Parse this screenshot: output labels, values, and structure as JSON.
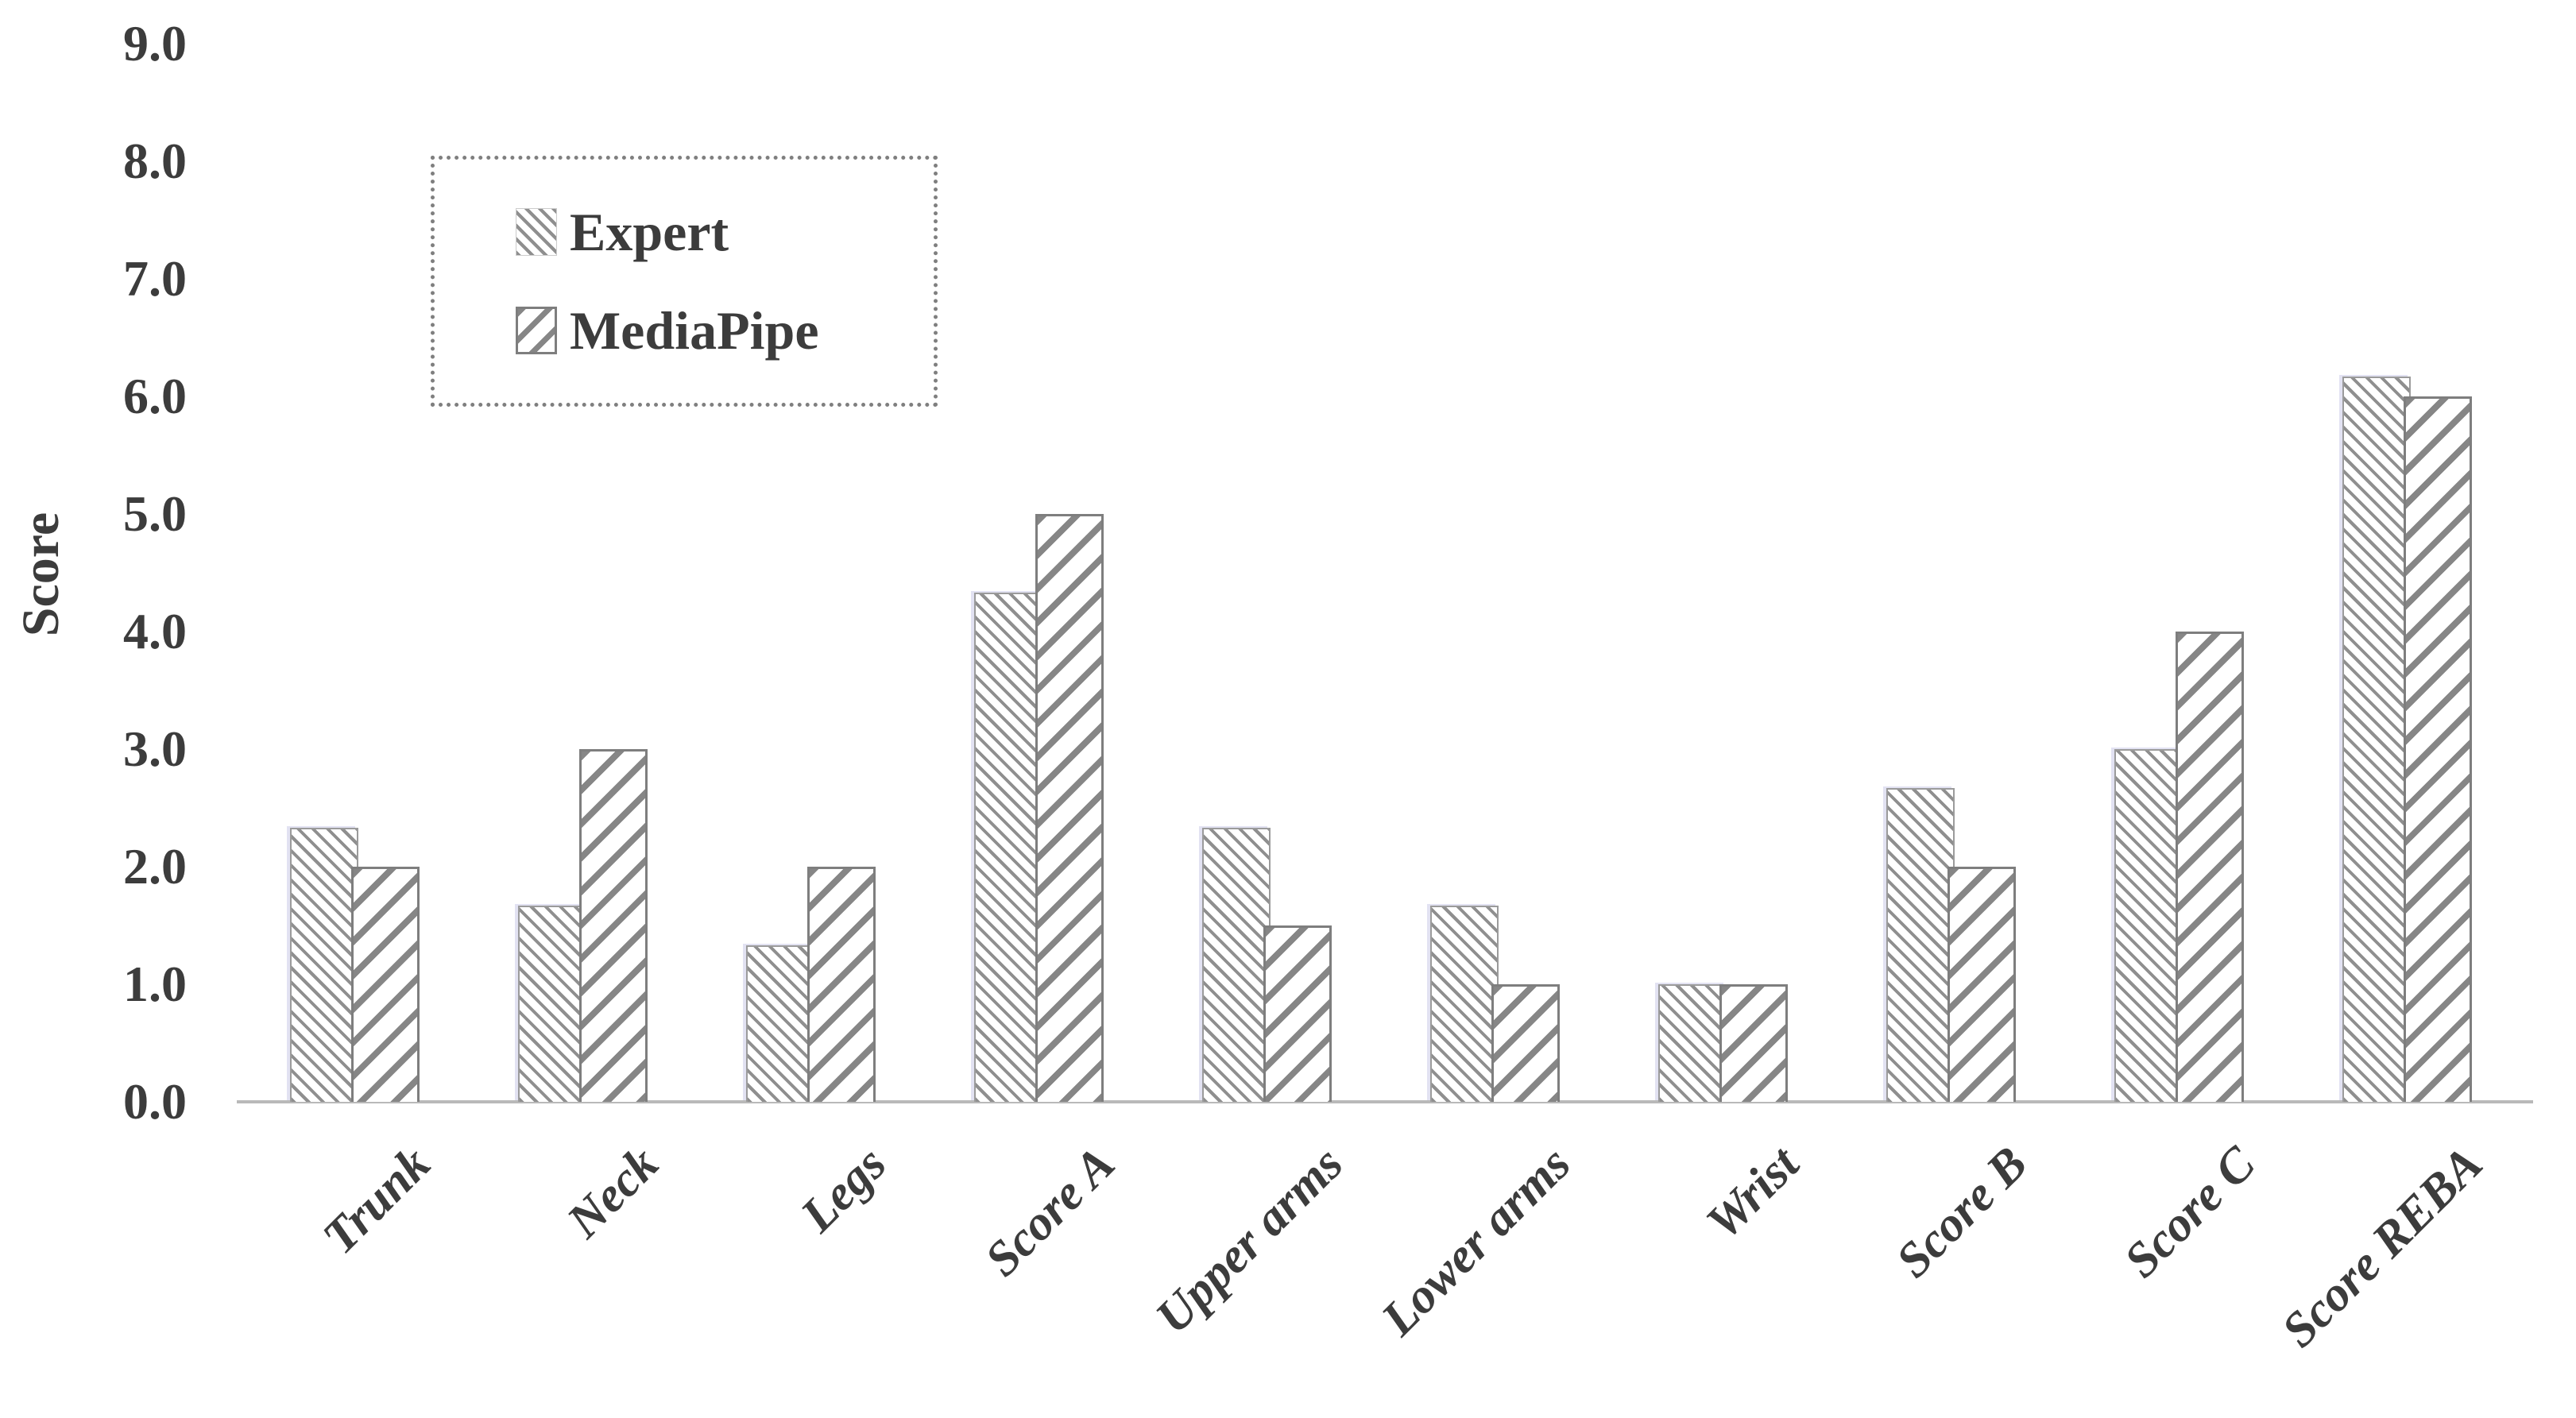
{
  "chart_data": {
    "type": "bar",
    "title": "",
    "xlabel": "",
    "ylabel": "Score",
    "ylim": [
      0,
      9
    ],
    "yticks": [
      "0.0",
      "1.0",
      "2.0",
      "3.0",
      "4.0",
      "5.0",
      "6.0",
      "7.0",
      "8.0",
      "9.0"
    ],
    "grid": false,
    "legend_position": "top-left-inside",
    "categories": [
      "Trunk",
      "Neck",
      "Legs",
      "Score A",
      "Upper arms",
      "Lower arms",
      "Wrist",
      "Score B",
      "Score C",
      "Score REBA"
    ],
    "series": [
      {
        "name": "Expert",
        "hatch": "backslash-dense",
        "values": [
          2.33,
          1.67,
          1.33,
          4.33,
          2.33,
          1.67,
          1.0,
          2.67,
          3.0,
          6.17
        ]
      },
      {
        "name": "MediaPipe",
        "hatch": "forward-slash",
        "values": [
          2.0,
          3.0,
          2.0,
          5.0,
          1.5,
          1.0,
          1.0,
          2.0,
          4.0,
          6.0
        ]
      }
    ]
  },
  "colors": {
    "text": "#3c3c3c",
    "hatch_gray": "#8a8a8a",
    "bar_fill": "#ffffff",
    "bar_border": "#7e7e7e",
    "axis_line": "#b9b9b9",
    "legend_border": "#7f7f7f"
  }
}
